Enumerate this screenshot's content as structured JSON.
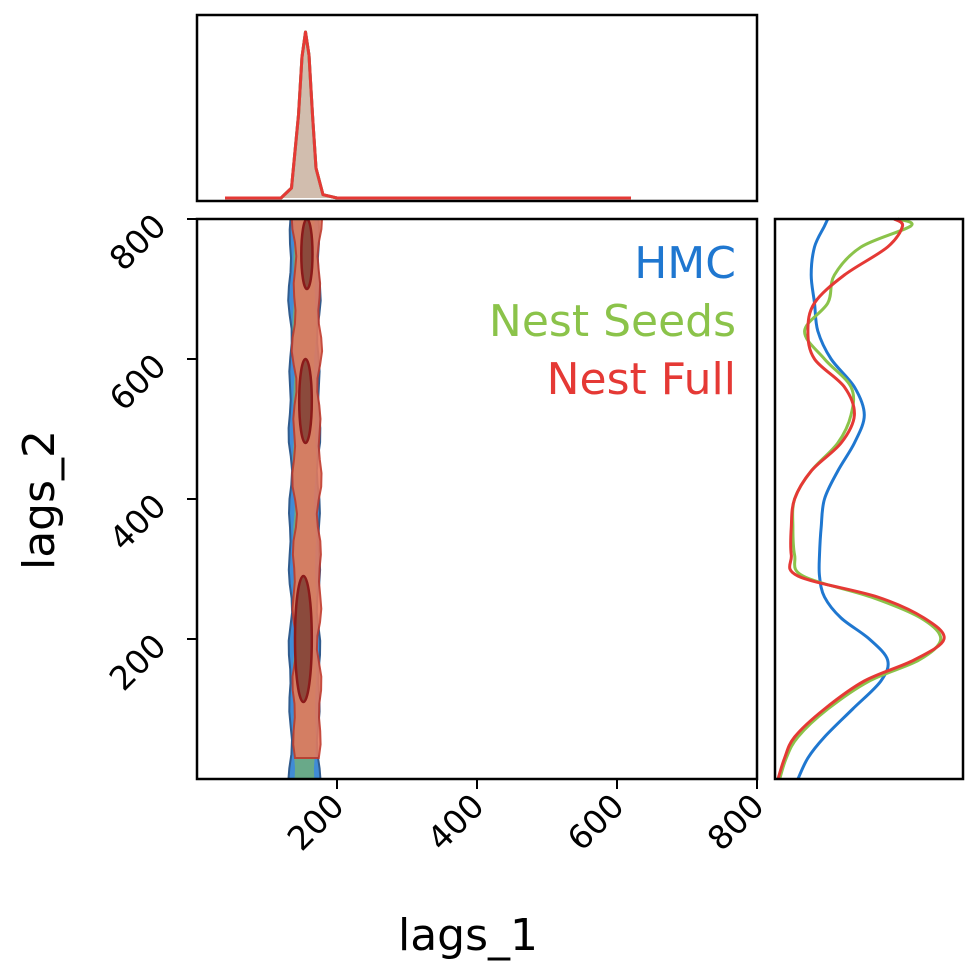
{
  "chart_data": {
    "type": "corner",
    "xlabel": "lags_1",
    "ylabel": "lags_2",
    "xlim": [
      0,
      800
    ],
    "ylim": [
      0,
      800
    ],
    "xticks": [
      "200",
      "400",
      "600",
      "800"
    ],
    "yticks": [
      "200",
      "400",
      "600",
      "800"
    ],
    "legend": {
      "placement": "top-right",
      "entries": [
        {
          "name": "HMC",
          "color": "#1f77d0"
        },
        {
          "name": "Nest Seeds",
          "color": "#8bc34a"
        },
        {
          "name": "Nest Full",
          "color": "#e53935"
        }
      ]
    },
    "top_marginal": {
      "x": [
        40,
        120,
        135,
        145,
        150,
        155,
        160,
        165,
        170,
        180,
        200,
        400,
        620
      ],
      "series": [
        {
          "name": "HMC",
          "color": "#1f77d0",
          "density": [
            0,
            0,
            0.06,
            0.5,
            0.85,
            1.0,
            0.86,
            0.5,
            0.18,
            0.02,
            0,
            0,
            0
          ]
        },
        {
          "name": "Nest Seeds",
          "color": "#8bc34a",
          "density": [
            0,
            0,
            0.06,
            0.5,
            0.85,
            1.0,
            0.86,
            0.5,
            0.18,
            0.02,
            0,
            0,
            0
          ]
        },
        {
          "name": "Nest Full",
          "color": "#e53935",
          "density": [
            0,
            0,
            0.06,
            0.5,
            0.85,
            1.0,
            0.86,
            0.5,
            0.18,
            0.02,
            0,
            0,
            0
          ]
        }
      ]
    },
    "right_marginal": {
      "y": [
        0,
        30,
        60,
        100,
        140,
        170,
        200,
        230,
        260,
        290,
        320,
        360,
        400,
        440,
        480,
        520,
        560,
        600,
        640,
        680,
        720,
        760,
        790,
        800
      ],
      "series": [
        {
          "name": "HMC",
          "color": "#1f77d0",
          "density": [
            0.12,
            0.18,
            0.28,
            0.45,
            0.62,
            0.66,
            0.55,
            0.38,
            0.28,
            0.25,
            0.25,
            0.26,
            0.28,
            0.36,
            0.46,
            0.52,
            0.46,
            0.32,
            0.24,
            0.22,
            0.2,
            0.22,
            0.28,
            0.3
          ]
        },
        {
          "name": "Nest Seeds",
          "color": "#8bc34a",
          "density": [
            0.01,
            0.05,
            0.12,
            0.3,
            0.55,
            0.85,
            0.98,
            0.86,
            0.56,
            0.15,
            0.1,
            0.09,
            0.1,
            0.2,
            0.36,
            0.44,
            0.44,
            0.28,
            0.16,
            0.3,
            0.34,
            0.5,
            0.8,
            0.72
          ]
        },
        {
          "name": "Nest Full",
          "color": "#e53935",
          "density": [
            0,
            0.04,
            0.1,
            0.28,
            0.52,
            0.82,
            1.0,
            0.88,
            0.6,
            0.12,
            0.08,
            0.08,
            0.1,
            0.2,
            0.38,
            0.46,
            0.4,
            0.22,
            0.18,
            0.22,
            0.4,
            0.66,
            0.75,
            0.7
          ]
        }
      ]
    },
    "joint": {
      "contours": [
        {
          "name": "HMC",
          "color": "#1f77d0",
          "x_low": 133,
          "x_high": 174,
          "y_low": 0,
          "y_high": 800
        },
        {
          "name": "Nest Full",
          "color": "#e07a5f",
          "x_low": 140,
          "x_high": 180,
          "y_low": 30,
          "y_high": 800
        }
      ],
      "cores": [
        {
          "y_low": 110,
          "y_high": 290,
          "x_center": 152,
          "x_halfwidth": 12
        },
        {
          "y_low": 480,
          "y_high": 600,
          "x_center": 155,
          "x_halfwidth": 9
        },
        {
          "y_low": 700,
          "y_high": 800,
          "x_center": 157,
          "x_halfwidth": 8
        }
      ]
    }
  }
}
